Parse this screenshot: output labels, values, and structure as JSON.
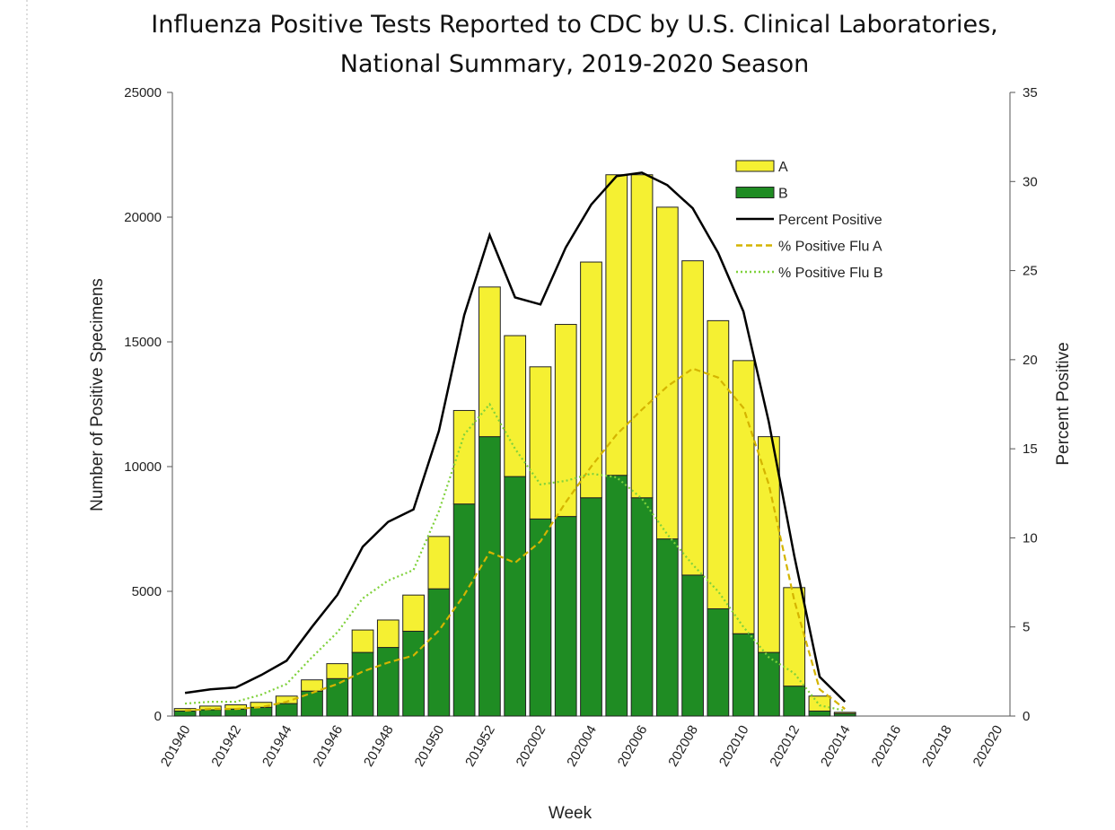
{
  "chart_data": {
    "type": "bar",
    "title": [
      "Influenza Positive Tests Reported to CDC by U.S. Clinical Laboratories,",
      "National Summary, 2019-2020 Season"
    ],
    "x_label": "Week",
    "y_label": "Number of Positive Specimens",
    "y2_label": "Percent Positive",
    "categories": [
      "201940",
      null,
      "201942",
      null,
      "201944",
      null,
      "201946",
      null,
      "201948",
      null,
      "201950",
      null,
      "201952",
      null,
      "202002",
      null,
      "202004",
      null,
      "202006",
      null,
      "202008",
      null,
      "202010",
      null,
      "202012",
      null,
      "202014",
      null,
      "202016",
      null,
      "202018",
      null,
      "202020"
    ],
    "ylim": [
      0,
      25000
    ],
    "yticks": [
      0,
      5000,
      10000,
      15000,
      20000,
      25000
    ],
    "y2lim": [
      0,
      35
    ],
    "y2ticks": [
      0,
      5,
      10,
      15,
      20,
      25,
      30,
      35
    ],
    "grid": false,
    "stacked": true,
    "legend": "upper right",
    "series": [
      {
        "name": "A",
        "kind": "bar",
        "color": "#f5f032",
        "values": [
          100,
          150,
          170,
          200,
          300,
          450,
          600,
          900,
          1100,
          1450,
          2100,
          3750,
          6000,
          5650,
          6100,
          7700,
          9450,
          12050,
          12950,
          13300,
          12600,
          11550,
          10950,
          8650,
          3950,
          600,
          50,
          null,
          null,
          null,
          null,
          null,
          null
        ]
      },
      {
        "name": "B",
        "kind": "bar",
        "color": "#1f8c23",
        "values": [
          200,
          250,
          280,
          350,
          500,
          1000,
          1500,
          2550,
          2750,
          3400,
          5100,
          8500,
          11200,
          9600,
          7900,
          8000,
          8750,
          9650,
          8750,
          7100,
          5650,
          4300,
          3300,
          2550,
          1200,
          200,
          100,
          null,
          null,
          null,
          null,
          null,
          null
        ]
      },
      {
        "name": "Percent Positive",
        "kind": "line",
        "axis": "y2",
        "style": "solid",
        "color": "#000000",
        "values": [
          1.3,
          1.5,
          1.6,
          2.3,
          3.1,
          5.0,
          6.8,
          9.5,
          10.9,
          11.6,
          16.0,
          22.5,
          27.0,
          23.5,
          23.1,
          26.3,
          28.7,
          30.3,
          30.5,
          29.8,
          28.5,
          26.0,
          22.7,
          16.5,
          9.0,
          2.2,
          0.8,
          null,
          null,
          null,
          null,
          null,
          null
        ]
      },
      {
        "name": "% Positive Flu A",
        "kind": "line",
        "axis": "y2",
        "style": "dashed",
        "color": "#d4b400",
        "values": [
          0.3,
          0.4,
          0.4,
          0.5,
          0.8,
          1.3,
          1.8,
          2.5,
          3.0,
          3.4,
          4.8,
          6.8,
          9.2,
          8.6,
          9.8,
          12.0,
          14.0,
          15.8,
          17.2,
          18.5,
          19.5,
          19.0,
          17.3,
          13.0,
          6.5,
          1.5,
          0.4,
          null,
          null,
          null,
          null,
          null,
          null
        ]
      },
      {
        "name": "% Positive Flu B",
        "kind": "line",
        "axis": "y2",
        "style": "dotted",
        "color": "#7fd13b",
        "values": [
          0.7,
          0.8,
          0.8,
          1.2,
          1.8,
          3.3,
          4.7,
          6.6,
          7.6,
          8.2,
          11.5,
          15.8,
          17.5,
          15.0,
          13.0,
          13.2,
          13.6,
          13.4,
          12.2,
          10.2,
          8.5,
          7.0,
          5.0,
          3.3,
          2.4,
          0.6,
          0.3,
          null,
          null,
          null,
          null,
          null,
          null
        ]
      }
    ]
  }
}
